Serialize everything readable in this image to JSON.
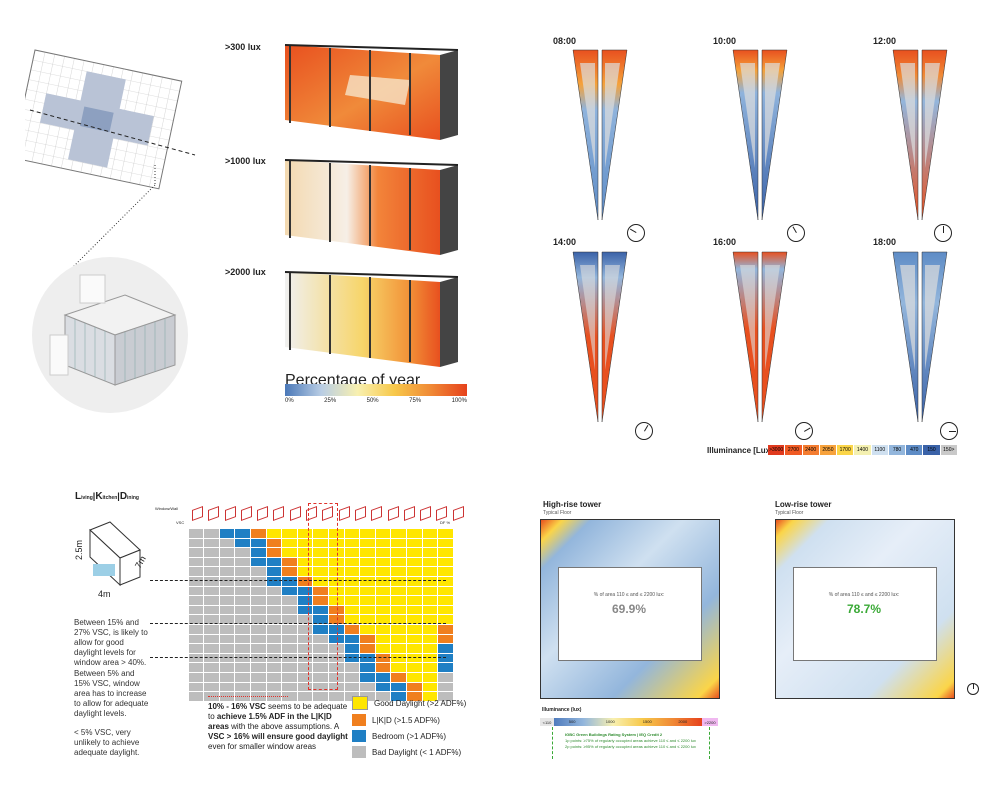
{
  "renders": {
    "labels": [
      ">300 lux",
      ">1000 lux",
      ">2000 lux"
    ],
    "legend": {
      "title": "Percentage of year",
      "ticks": [
        "0%",
        "25%",
        "50%",
        "75%",
        "100%"
      ]
    }
  },
  "time_maps": {
    "times": [
      "08:00",
      "10:00",
      "12:00",
      "14:00",
      "16:00",
      "18:00"
    ],
    "illuminance_label": "Illuminance [Lux]",
    "scale": [
      {
        "label": ">3000",
        "color": "#e03a1e"
      },
      {
        "label": "2700",
        "color": "#f05a24"
      },
      {
        "label": "2400",
        "color": "#f47c30"
      },
      {
        "label": "2050",
        "color": "#f7a23c"
      },
      {
        "label": "1700",
        "color": "#fbd548"
      },
      {
        "label": "1400",
        "color": "#f4f0b0"
      },
      {
        "label": "1100",
        "color": "#cfe0f0"
      },
      {
        "label": "780",
        "color": "#93b6dc"
      },
      {
        "label": "470",
        "color": "#5e8cc6"
      },
      {
        "label": "150",
        "color": "#3a62a8"
      },
      {
        "label": "150>",
        "color": "#c9c9c9"
      }
    ]
  },
  "vsc": {
    "title_parts": [
      "L",
      "iving",
      "|",
      "K",
      "itchen",
      "|",
      "D",
      "ining"
    ],
    "window_wall_label": "Window/Wall",
    "vsc_label": "VSC",
    "df_label": "DF %",
    "dims": [
      "2.5m",
      "4m",
      "7m"
    ],
    "notes": [
      "Between 15% and 27% VSC, is likely to allow for good daylight levels for window area > 40%.",
      "Between 5% and 15% VSC, window area has to increase to allow for adequate daylight levels.",
      "< 5% VSC, very unlikely to achieve adequate daylight."
    ],
    "callout": [
      "10% - 16% VSC",
      " seems to be adequate to ",
      "achieve 1.5% ADF in the L|K|D areas",
      " with the above assumptions. A ",
      "VSC > 16% will ensure good daylight",
      " even for smaller window areas"
    ],
    "legend": [
      {
        "label": "Good Daylight (>2 ADF%)",
        "color": "#ffe600"
      },
      {
        "label": "L|K|D (>1.5 ADF%)",
        "color": "#f07f1e"
      },
      {
        "label": "Bedroom (>1 ADF%)",
        "color": "#1f7fc4"
      },
      {
        "label": "Bad Daylight (< 1 ADF%)",
        "color": "#bdbdbd"
      }
    ]
  },
  "plans": {
    "high": {
      "title": "High-rise tower",
      "sub": "Typical Floor",
      "caption": "% of area 110 ≤ and ≤ 2200 lux:",
      "value": "69.9%",
      "value_color": "#888888"
    },
    "low": {
      "title": "Low-rise tower",
      "sub": "Typical Floor",
      "caption": "% of area 110 ≤ and ≤ 2200 lux:",
      "value": "78.7%",
      "value_color": "#3aa936"
    },
    "legend_title": "Illuminance (lux)",
    "legend_ticks": [
      "<110",
      "500",
      "1000",
      "1500",
      "2000",
      ">2200"
    ],
    "igbc": {
      "title": "IGBC Green Buildings Rating System | IEQ Credit 2",
      "line1": "1p points:  ≥75% of regularly occupied areas achieve 110 ≤ and ≤ 2200 lux",
      "line2": "2p points: ≥95% of regularly occupied areas achieve 110 ≤ and ≤ 2200 lux"
    }
  }
}
